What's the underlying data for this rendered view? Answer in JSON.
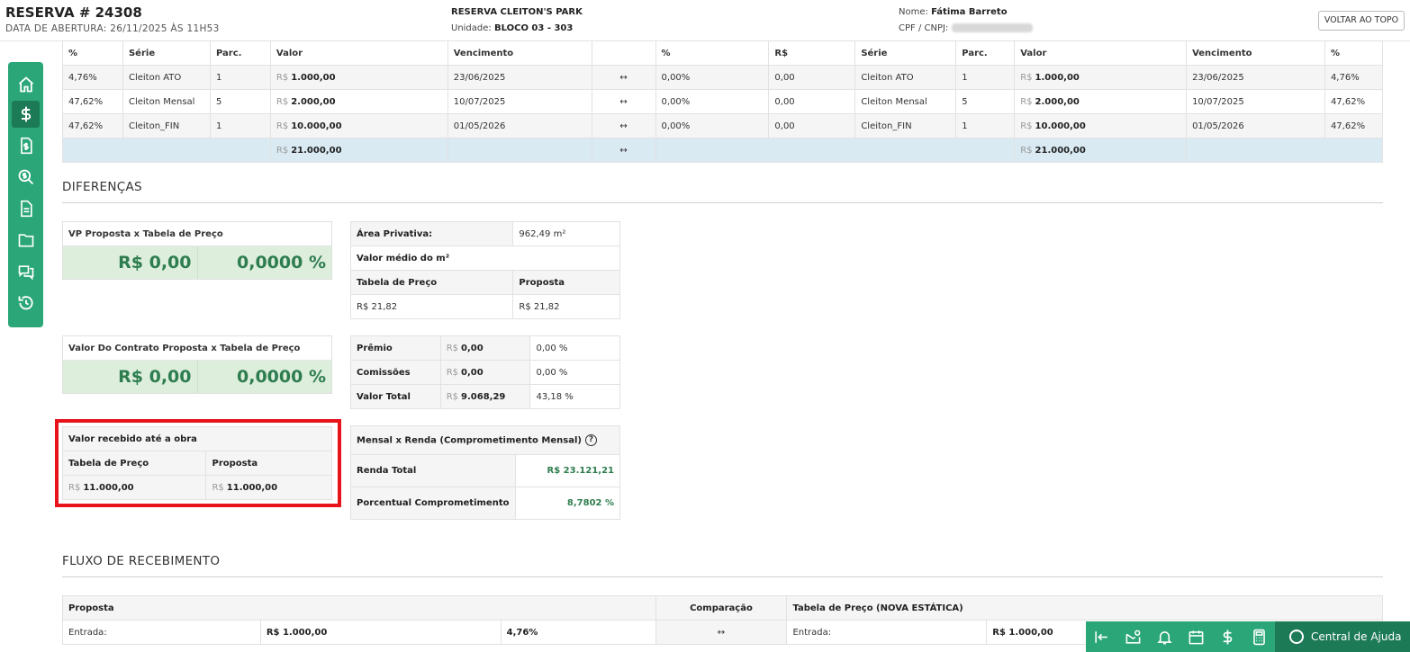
{
  "header": {
    "title": "RESERVA # 24308",
    "subtitle": "DATA DE ABERTURA: 26/11/2025 ÀS 11H53",
    "project": "RESERVA CLEITON'S PARK",
    "unit_label": "Unidade:",
    "unit_value": "BLOCO 03 - 303",
    "name_label": "Nome:",
    "name_value": "Fátima Barreto",
    "cpf_label": "CPF / CNPJ:",
    "back_to_top": "VOLTAR AO TOPO"
  },
  "sidebar": {
    "items": [
      {
        "icon": "home-icon"
      },
      {
        "icon": "dollar-icon",
        "active": true
      },
      {
        "icon": "invoice-icon"
      },
      {
        "icon": "search-money-icon"
      },
      {
        "icon": "document-icon"
      },
      {
        "icon": "folder-icon"
      },
      {
        "icon": "chat-icon"
      },
      {
        "icon": "history-icon"
      }
    ]
  },
  "payment_table": {
    "currency": "R$",
    "headers": [
      "%",
      "Série",
      "Parc.",
      "Valor",
      "Vencimento",
      "",
      "%",
      "R$",
      "Série",
      "Parc.",
      "Valor",
      "Vencimento",
      "%"
    ],
    "rows": [
      {
        "pct_l": "4,76%",
        "serie_l": "Cleiton ATO",
        "parc_l": "1",
        "valor_l": "1.000,00",
        "venc_l": "23/06/2025",
        "pct_diff": "0,00%",
        "rs_diff": "0,00",
        "serie_r": "Cleiton ATO",
        "parc_r": "1",
        "valor_r": "1.000,00",
        "venc_r": "23/06/2025",
        "pct_r": "4,76%"
      },
      {
        "pct_l": "47,62%",
        "serie_l": "Cleiton Mensal",
        "parc_l": "5",
        "valor_l": "2.000,00",
        "venc_l": "10/07/2025",
        "pct_diff": "0,00%",
        "rs_diff": "0,00",
        "serie_r": "Cleiton Mensal",
        "parc_r": "5",
        "valor_r": "2.000,00",
        "venc_r": "10/07/2025",
        "pct_r": "47,62%"
      },
      {
        "pct_l": "47,62%",
        "serie_l": "Cleiton_FIN",
        "parc_l": "1",
        "valor_l": "10.000,00",
        "venc_l": "01/05/2026",
        "pct_diff": "0,00%",
        "rs_diff": "0,00",
        "serie_r": "Cleiton_FIN",
        "parc_r": "1",
        "valor_r": "10.000,00",
        "venc_r": "01/05/2026",
        "pct_r": "47,62%"
      }
    ],
    "total_l": "21.000,00",
    "total_r": "21.000,00",
    "arrow": "↔"
  },
  "diferencas": {
    "title": "DIFERENÇAS",
    "vp_card": {
      "title": "VP Proposta x Tabela de Preço",
      "value": "R$ 0,00",
      "percent": "0,0000 %"
    },
    "contrato_card": {
      "title": "Valor Do Contrato Proposta x Tabela de Preço",
      "value": "R$ 0,00",
      "percent": "0,0000 %"
    },
    "area": {
      "area_label": "Área Privativa:",
      "area_value": "962,49 m²",
      "avg_label": "Valor médio do m²",
      "col_tabela": "Tabela de Preço",
      "col_proposta": "Proposta",
      "tabela_value": "R$ 21,82",
      "proposta_value": "R$ 21,82"
    },
    "premio": {
      "rows": [
        {
          "label": "Prêmio",
          "value": "0,00",
          "pct": "0,00 %"
        },
        {
          "label": "Comissões",
          "value": "0,00",
          "pct": "0,00 %"
        },
        {
          "label": "Valor Total",
          "value": "9.068,29",
          "pct": "43,18 %"
        }
      ]
    },
    "recebido": {
      "title": "Valor recebido até a obra",
      "col_tabela": "Tabela de Preço",
      "col_proposta": "Proposta",
      "tabela_value": "11.000,00",
      "proposta_value": "11.000,00"
    },
    "renda": {
      "title": "Mensal x Renda (Comprometimento Mensal)",
      "help": "?",
      "renda_label": "Renda Total",
      "renda_value": "R$ 23.121,21",
      "pct_label": "Porcentual Comprometimento",
      "pct_value": "8,7802 %"
    }
  },
  "fluxo": {
    "title": "FLUXO DE RECEBIMENTO",
    "col_proposta": "Proposta",
    "col_comparacao": "Comparação",
    "col_tabela": "Tabela de Preço (NOVA ESTÁTICA)",
    "row_label": "Entrada:",
    "row_value_l": "R$ 1.000,00",
    "row_pct_l": "4,76%",
    "row_value_r": "R$ 1.000,00"
  },
  "toolbar": {
    "icons": [
      "collapse-left-icon",
      "mail-settings-icon",
      "bell-icon",
      "calendar-icon",
      "dollar-icon",
      "calculator-icon"
    ],
    "help_center": "Central de Ajuda"
  },
  "colors": {
    "accent": "#2aa678",
    "accent_dark": "#1c7a57",
    "green_text": "#2e7d4f",
    "highlight": "#e8141b"
  }
}
